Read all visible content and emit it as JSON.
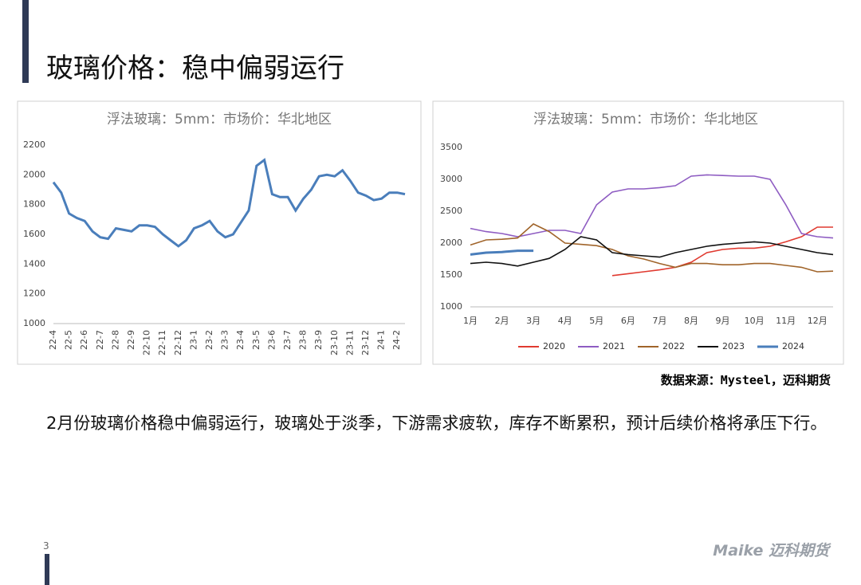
{
  "title": "玻璃价格：稳中偏弱运行",
  "chart_data": [
    {
      "type": "line",
      "title": "浮法玻璃：5mm：市场价：华北地区",
      "categories": [
        "22-4",
        null,
        "22-5",
        null,
        "22-6",
        null,
        "22-7",
        null,
        "22-8",
        null,
        "22-9",
        null,
        "22-10",
        null,
        "22-11",
        null,
        "22-12",
        null,
        "23-1",
        null,
        "23-2",
        null,
        "23-3",
        null,
        "23-4",
        null,
        "23-5",
        null,
        "23-6",
        null,
        "23-7",
        null,
        "23-8",
        null,
        "23-9",
        null,
        "23-10",
        null,
        "23-11",
        null,
        "23-12",
        null,
        "24-1",
        null,
        "24-2",
        null
      ],
      "values": [
        1950,
        1880,
        1740,
        1710,
        1690,
        1620,
        1580,
        1570,
        1640,
        1630,
        1620,
        1660,
        1660,
        1650,
        1600,
        1560,
        1520,
        1560,
        1640,
        1660,
        1690,
        1620,
        1580,
        1600,
        1680,
        1760,
        2060,
        2100,
        1870,
        1850,
        1850,
        1760,
        1840,
        1900,
        1990,
        2000,
        1990,
        2030,
        1960,
        1880,
        1860,
        1830,
        1840,
        1880,
        1880,
        1870
      ],
      "color": "#4a7ebb",
      "ylim": [
        1000,
        2200
      ],
      "yticks": [
        1000,
        1200,
        1400,
        1600,
        1800,
        2000,
        2200
      ]
    },
    {
      "type": "line",
      "title": "浮法玻璃：5mm：市场价：华北地区",
      "categories": [
        "1月",
        null,
        "2月",
        null,
        "3月",
        null,
        "4月",
        null,
        "5月",
        null,
        "6月",
        null,
        "7月",
        null,
        "8月",
        null,
        "9月",
        null,
        "10月",
        null,
        "11月",
        null,
        "12月",
        null
      ],
      "series": [
        {
          "name": "2020",
          "color": "#e03a30",
          "values": [
            null,
            null,
            null,
            null,
            null,
            null,
            null,
            null,
            null,
            1490,
            1520,
            1550,
            1580,
            1620,
            1700,
            1850,
            1900,
            1920,
            1920,
            1950,
            2020,
            2100,
            2250,
            2250
          ]
        },
        {
          "name": "2021",
          "color": "#8e5cc2",
          "values": [
            2230,
            2180,
            2150,
            2100,
            2150,
            2200,
            2200,
            2150,
            2600,
            2800,
            2850,
            2850,
            2870,
            2900,
            3050,
            3070,
            3060,
            3050,
            3050,
            3000,
            2600,
            2150,
            2100,
            2080
          ]
        },
        {
          "name": "2022",
          "color": "#a0642a",
          "values": [
            1970,
            2050,
            2060,
            2080,
            2300,
            2180,
            2000,
            1980,
            1960,
            1900,
            1800,
            1750,
            1680,
            1620,
            1680,
            1680,
            1660,
            1660,
            1680,
            1680,
            1650,
            1620,
            1550,
            1560
          ]
        },
        {
          "name": "2023",
          "color": "#111111",
          "values": [
            1680,
            1700,
            1680,
            1640,
            1700,
            1760,
            1900,
            2100,
            2050,
            1850,
            1820,
            1800,
            1780,
            1850,
            1900,
            1950,
            1980,
            2000,
            2020,
            2000,
            1950,
            1900,
            1850,
            1820
          ]
        },
        {
          "name": "2024",
          "color": "#4a7ebb",
          "values": [
            1820,
            1850,
            1860,
            1880,
            1880,
            null,
            null,
            null,
            null,
            null,
            null,
            null,
            null,
            null,
            null,
            null,
            null,
            null,
            null,
            null,
            null,
            null,
            null,
            null
          ]
        }
      ],
      "ylim": [
        1000,
        3500
      ],
      "yticks": [
        1000,
        1500,
        2000,
        2500,
        3000,
        3500
      ]
    }
  ],
  "source": "数据来源：Mysteel，迈科期货",
  "body": "2月份玻璃价格稳中偏弱运行，玻璃处于淡季，下游需求疲软，库存不断累积，预计后续价格将承压下行。",
  "page_number": "3",
  "logo": "Maike 迈科期货"
}
